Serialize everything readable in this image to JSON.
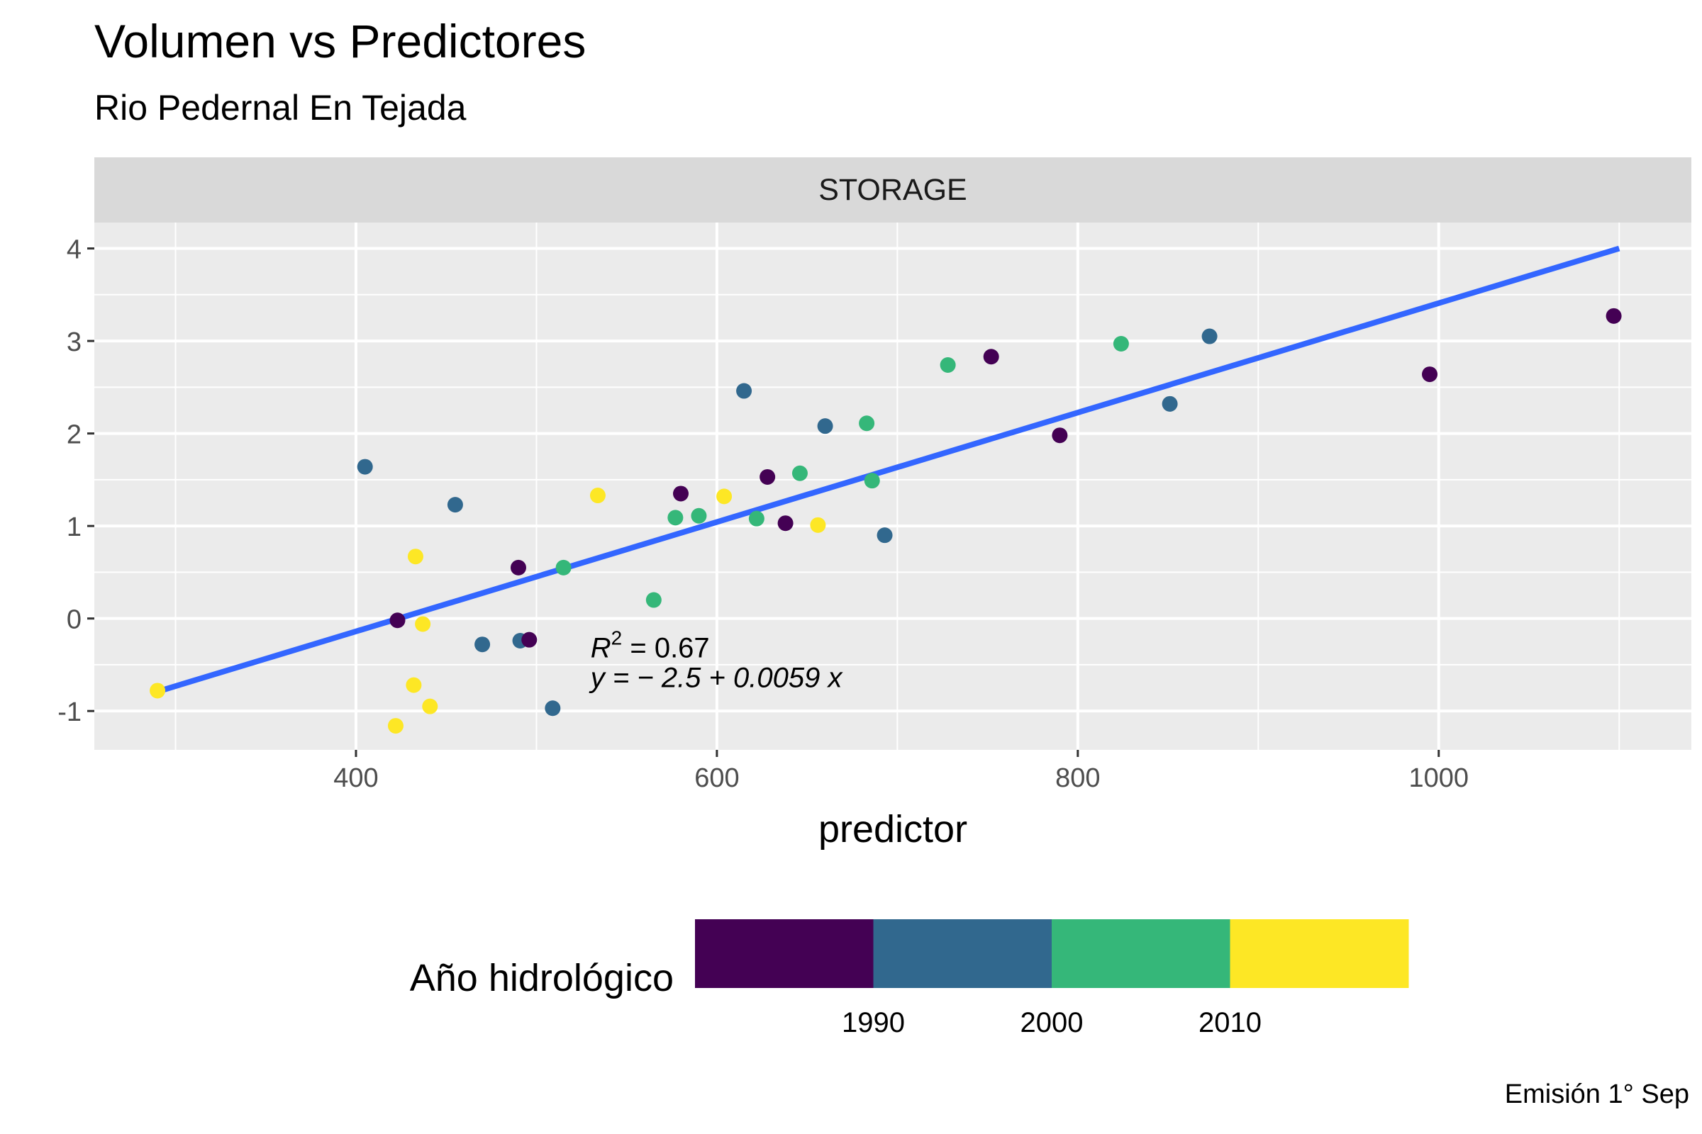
{
  "title": "Volumen vs Predictores",
  "subtitle": "Rio Pedernal En Tejada",
  "caption": "Emisión 1° Sep",
  "chart_data": {
    "type": "scatter",
    "panel_label": "STORAGE",
    "xlabel": "predictor",
    "ylabel": "",
    "xlim": [
      255,
      1140
    ],
    "ylim": [
      -1.42,
      4.28
    ],
    "x_ticks": [
      400,
      600,
      800,
      1000
    ],
    "x_minor": [
      300,
      500,
      700,
      900,
      1100
    ],
    "y_ticks": [
      -1,
      0,
      1,
      2,
      3,
      4
    ],
    "grid": true,
    "legend": {
      "title": "Año hidrológico",
      "position": "bottom",
      "type": "colorbar-steps",
      "colors": [
        "#440154",
        "#31688E",
        "#35B779",
        "#FDE725"
      ],
      "labels": [
        "1990",
        "2000",
        "2010"
      ]
    },
    "annotation": {
      "r2_label": "R",
      "r2_exp": "2",
      "r2_value": " = 0.67",
      "equation": "y = − 2.5 + 0.0059 x",
      "x": 530,
      "y": -0.42
    },
    "fit_line": {
      "color": "#3366FF",
      "x": [
        290,
        1100
      ],
      "y": [
        -0.79,
        4.0
      ]
    },
    "points": [
      {
        "x": 290,
        "y": -0.78,
        "group": 3
      },
      {
        "x": 405,
        "y": 1.64,
        "group": 1
      },
      {
        "x": 422,
        "y": -1.16,
        "group": 3
      },
      {
        "x": 423,
        "y": -0.02,
        "group": 0
      },
      {
        "x": 432,
        "y": -0.72,
        "group": 3
      },
      {
        "x": 433,
        "y": 0.67,
        "group": 3
      },
      {
        "x": 437,
        "y": -0.06,
        "group": 3
      },
      {
        "x": 441,
        "y": -0.95,
        "group": 3
      },
      {
        "x": 455,
        "y": 1.23,
        "group": 1
      },
      {
        "x": 470,
        "y": -0.28,
        "group": 1
      },
      {
        "x": 490,
        "y": 0.55,
        "group": 0
      },
      {
        "x": 491,
        "y": -0.24,
        "group": 1
      },
      {
        "x": 496,
        "y": -0.23,
        "group": 0
      },
      {
        "x": 509,
        "y": -0.97,
        "group": 1
      },
      {
        "x": 515,
        "y": 0.55,
        "group": 2
      },
      {
        "x": 534,
        "y": 1.33,
        "group": 3
      },
      {
        "x": 565,
        "y": 0.2,
        "group": 2
      },
      {
        "x": 577,
        "y": 1.09,
        "group": 2
      },
      {
        "x": 580,
        "y": 1.35,
        "group": 0
      },
      {
        "x": 590,
        "y": 1.11,
        "group": 2
      },
      {
        "x": 604,
        "y": 1.32,
        "group": 3
      },
      {
        "x": 615,
        "y": 2.46,
        "group": 1
      },
      {
        "x": 622,
        "y": 1.08,
        "group": 2
      },
      {
        "x": 628,
        "y": 1.53,
        "group": 0
      },
      {
        "x": 638,
        "y": 1.03,
        "group": 0
      },
      {
        "x": 646,
        "y": 1.57,
        "group": 2
      },
      {
        "x": 656,
        "y": 1.01,
        "group": 3
      },
      {
        "x": 660,
        "y": 2.08,
        "group": 1
      },
      {
        "x": 683,
        "y": 2.11,
        "group": 2
      },
      {
        "x": 686,
        "y": 1.49,
        "group": 2
      },
      {
        "x": 693,
        "y": 0.9,
        "group": 1
      },
      {
        "x": 728,
        "y": 2.74,
        "group": 2
      },
      {
        "x": 752,
        "y": 2.83,
        "group": 0
      },
      {
        "x": 790,
        "y": 1.98,
        "group": 0
      },
      {
        "x": 824,
        "y": 2.97,
        "group": 2
      },
      {
        "x": 851,
        "y": 2.32,
        "group": 1
      },
      {
        "x": 873,
        "y": 3.05,
        "group": 1
      },
      {
        "x": 995,
        "y": 2.64,
        "group": 0
      },
      {
        "x": 1097,
        "y": 3.27,
        "group": 0
      }
    ]
  }
}
